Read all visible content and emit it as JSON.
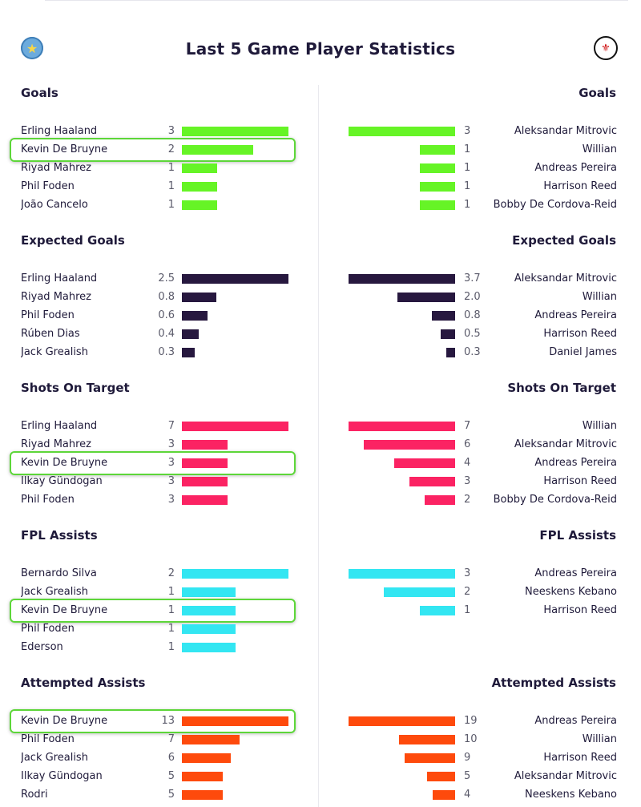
{
  "page": {
    "title": "Last 5 Game Player Statistics",
    "home_badge_icon": "star-icon",
    "away_badge_icon": "crest-icon",
    "away_badge_glyph": "⚜"
  },
  "colors": {
    "goals": "#66f426",
    "xg": "#27183f",
    "shots": "#fb2363",
    "assists": "#33e6f2",
    "attempted": "#fe4a0c",
    "highlight": "#5dd639"
  },
  "sections": [
    {
      "key": "goals",
      "title": "Goals",
      "max": 3,
      "home": [
        {
          "name": "Erling Haaland",
          "value": "3"
        },
        {
          "name": "Kevin De Bruyne",
          "value": "2",
          "highlight": true
        },
        {
          "name": "Riyad Mahrez",
          "value": "1"
        },
        {
          "name": "Phil Foden",
          "value": "1"
        },
        {
          "name": "João Cancelo",
          "value": "1"
        }
      ],
      "away": [
        {
          "name": "Aleksandar Mitrovic",
          "value": "3"
        },
        {
          "name": "Willian",
          "value": "1"
        },
        {
          "name": "Andreas Pereira",
          "value": "1"
        },
        {
          "name": "Harrison Reed",
          "value": "1"
        },
        {
          "name": "Bobby De Cordova-Reid",
          "value": "1"
        }
      ]
    },
    {
      "key": "xg",
      "title": "Expected Goals",
      "max": 3.7,
      "home_max": 2.5,
      "home": [
        {
          "name": "Erling Haaland",
          "value": "2.5"
        },
        {
          "name": "Riyad Mahrez",
          "value": "0.8"
        },
        {
          "name": "Phil Foden",
          "value": "0.6"
        },
        {
          "name": "Rúben Dias",
          "value": "0.4"
        },
        {
          "name": "Jack Grealish",
          "value": "0.3"
        }
      ],
      "away": [
        {
          "name": "Aleksandar Mitrovic",
          "value": "3.7"
        },
        {
          "name": "Willian",
          "value": "2.0"
        },
        {
          "name": "Andreas Pereira",
          "value": "0.8"
        },
        {
          "name": "Harrison Reed",
          "value": "0.5"
        },
        {
          "name": "Daniel James",
          "value": "0.3"
        }
      ]
    },
    {
      "key": "shots",
      "title": "Shots On Target",
      "max": 7,
      "home": [
        {
          "name": "Erling Haaland",
          "value": "7"
        },
        {
          "name": "Riyad Mahrez",
          "value": "3"
        },
        {
          "name": "Kevin De Bruyne",
          "value": "3",
          "highlight": true
        },
        {
          "name": "Ilkay Gündogan",
          "value": "3"
        },
        {
          "name": "Phil Foden",
          "value": "3"
        }
      ],
      "away": [
        {
          "name": "Willian",
          "value": "7"
        },
        {
          "name": "Aleksandar Mitrovic",
          "value": "6"
        },
        {
          "name": "Andreas Pereira",
          "value": "4"
        },
        {
          "name": "Harrison Reed",
          "value": "3"
        },
        {
          "name": "Bobby De Cordova-Reid",
          "value": "2"
        }
      ]
    },
    {
      "key": "assists",
      "title": "FPL Assists",
      "max": 3,
      "home_max": 2,
      "home": [
        {
          "name": "Bernardo Silva",
          "value": "2"
        },
        {
          "name": "Jack Grealish",
          "value": "1"
        },
        {
          "name": "Kevin De Bruyne",
          "value": "1",
          "highlight": true
        },
        {
          "name": "Phil Foden",
          "value": "1"
        },
        {
          "name": "Ederson",
          "value": "1"
        }
      ],
      "away": [
        {
          "name": "Andreas Pereira",
          "value": "3"
        },
        {
          "name": "Neeskens Kebano",
          "value": "2"
        },
        {
          "name": "Harrison Reed",
          "value": "1"
        }
      ]
    },
    {
      "key": "attempted",
      "title": "Attempted Assists",
      "max": 19,
      "home_max": 13,
      "home": [
        {
          "name": "Kevin De Bruyne",
          "value": "13",
          "highlight": true
        },
        {
          "name": "Phil Foden",
          "value": "7"
        },
        {
          "name": "Jack Grealish",
          "value": "6"
        },
        {
          "name": "Ilkay Gündogan",
          "value": "5"
        },
        {
          "name": "Rodri",
          "value": "5"
        }
      ],
      "away": [
        {
          "name": "Andreas Pereira",
          "value": "19"
        },
        {
          "name": "Willian",
          "value": "10"
        },
        {
          "name": "Harrison Reed",
          "value": "9"
        },
        {
          "name": "Aleksandar Mitrovic",
          "value": "5"
        },
        {
          "name": "Neeskens Kebano",
          "value": "4"
        }
      ]
    }
  ]
}
